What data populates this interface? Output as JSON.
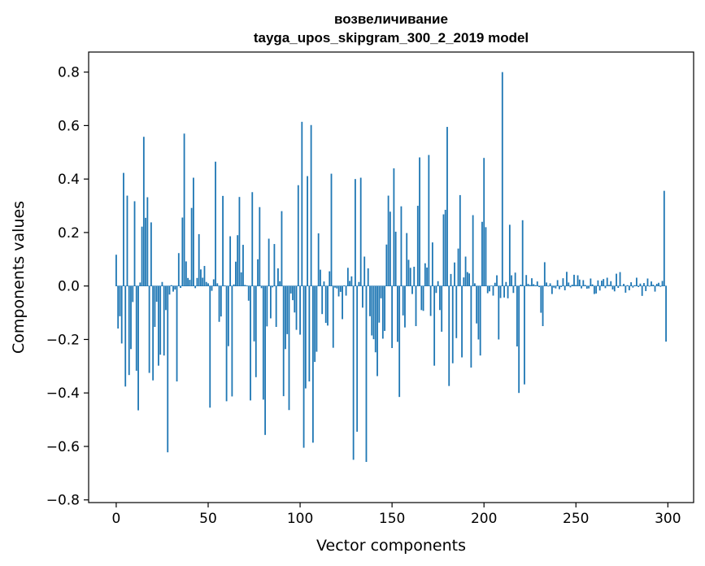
{
  "chart_data": {
    "type": "bar",
    "title_line1": "возвеличивание",
    "title_line2": "tayga_upos_skipgram_300_2_2019 model",
    "xlabel": "Vector components",
    "ylabel": "Components values",
    "xlim": [
      -15,
      314
    ],
    "ylim": [
      -0.81,
      0.875
    ],
    "xticks": [
      0,
      50,
      100,
      150,
      200,
      250,
      300
    ],
    "yticks": [
      -0.8,
      -0.6,
      -0.4,
      -0.2,
      0.0,
      0.2,
      0.4,
      0.6,
      0.8
    ],
    "ytick_labels": [
      "−0.8",
      "−0.6",
      "−0.4",
      "−0.2",
      "0.0",
      "0.2",
      "0.4",
      "0.6",
      "0.8"
    ],
    "bar_color": "#1f77b4",
    "grid": false,
    "values": [
      0.117,
      -0.159,
      -0.113,
      -0.215,
      0.423,
      -0.376,
      0.338,
      -0.333,
      -0.236,
      -0.06,
      0.317,
      -0.317,
      -0.465,
      0.013,
      0.222,
      0.558,
      0.255,
      0.332,
      -0.325,
      0.238,
      -0.353,
      -0.153,
      -0.059,
      -0.298,
      -0.257,
      0.015,
      -0.26,
      -0.09,
      -0.622,
      -0.032,
      0.003,
      -0.021,
      -0.013,
      -0.357,
      0.123,
      -0.007,
      0.256,
      0.57,
      0.092,
      0.03,
      0.023,
      0.292,
      0.405,
      -0.008,
      0.03,
      0.194,
      0.062,
      0.031,
      0.075,
      0.015,
      0.01,
      -0.455,
      -0.018,
      0.025,
      0.465,
      0.01,
      -0.134,
      -0.114,
      0.337,
      0.002,
      -0.431,
      -0.225,
      0.186,
      -0.413,
      0.006,
      0.091,
      0.19,
      0.333,
      0.051,
      0.154,
      0.004,
      0.002,
      -0.055,
      -0.428,
      0.351,
      -0.207,
      -0.341,
      0.1,
      0.295,
      -0.008,
      -0.425,
      -0.557,
      -0.151,
      0.177,
      -0.121,
      -0.005,
      0.157,
      -0.153,
      0.066,
      0.018,
      0.28,
      -0.412,
      -0.236,
      -0.18,
      -0.464,
      -0.028,
      -0.053,
      -0.099,
      -0.164,
      0.377,
      -0.182,
      0.614,
      -0.605,
      -0.383,
      0.411,
      -0.357,
      0.602,
      -0.586,
      -0.284,
      -0.246,
      0.197,
      0.061,
      -0.105,
      0.017,
      -0.138,
      -0.148,
      0.055,
      0.42,
      -0.231,
      -0.006,
      -0.009,
      -0.039,
      -0.022,
      -0.124,
      0.002,
      -0.036,
      0.068,
      0.019,
      0.036,
      -0.65,
      0.4,
      -0.545,
      0.015,
      0.405,
      -0.081,
      0.11,
      -0.658,
      0.066,
      -0.113,
      -0.185,
      -0.199,
      -0.248,
      -0.337,
      -0.137,
      -0.046,
      -0.197,
      -0.168,
      0.155,
      0.338,
      0.278,
      -0.232,
      0.44,
      0.203,
      -0.209,
      -0.415,
      0.298,
      -0.11,
      -0.155,
      0.198,
      0.098,
      0.068,
      -0.03,
      0.072,
      -0.15,
      0.3,
      0.481,
      -0.09,
      -0.093,
      0.085,
      0.069,
      0.49,
      -0.112,
      0.163,
      -0.298,
      -0.026,
      0.018,
      -0.09,
      -0.171,
      0.268,
      0.285,
      0.595,
      -0.374,
      0.045,
      -0.289,
      0.088,
      -0.195,
      0.14,
      0.34,
      -0.267,
      0.032,
      0.11,
      0.052,
      0.047,
      -0.305,
      0.265,
      0.01,
      -0.14,
      -0.2,
      -0.26,
      0.24,
      0.479,
      0.22,
      -0.027,
      -0.02,
      0.001,
      -0.036,
      0.012,
      0.04,
      -0.2,
      -0.045,
      0.8,
      -0.043,
      0.015,
      -0.046,
      0.229,
      0.04,
      -0.026,
      0.05,
      -0.226,
      -0.4,
      0.005,
      0.246,
      -0.368,
      0.041,
      0.008,
      0.004,
      0.029,
      0.007,
      0.003,
      0.017,
      -0.004,
      -0.1,
      -0.15,
      0.089,
      0.013,
      -0.002,
      0.01,
      -0.03,
      -0.006,
      -0.009,
      0.022,
      -0.012,
      -0.004,
      0.029,
      -0.016,
      0.053,
      0.013,
      -0.005,
      0.005,
      0.042,
      0.004,
      0.04,
      0.024,
      -0.009,
      0.022,
      0.004,
      -0.01,
      -0.009,
      0.028,
      0.006,
      -0.03,
      -0.028,
      0.021,
      -0.017,
      0.02,
      0.026,
      -0.008,
      0.031,
      0.004,
      0.018,
      -0.013,
      -0.02,
      0.046,
      -0.007,
      0.052,
      -0.001,
      0.008,
      -0.025,
      0.003,
      -0.016,
      0.014,
      -0.006,
      0.003,
      0.031,
      -0.004,
      0.009,
      -0.037,
      0.011,
      -0.019,
      0.028,
      -0.002,
      0.017,
      0.005,
      -0.021,
      0.008,
      0.012,
      -0.003,
      0.019,
      0.356,
      -0.208
    ]
  }
}
